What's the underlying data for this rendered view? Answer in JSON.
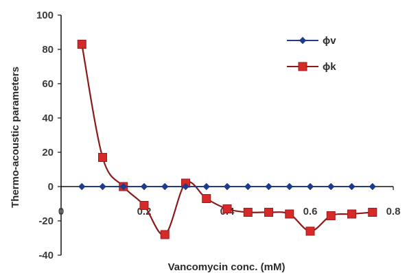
{
  "chart_data": {
    "type": "line",
    "xlabel": "Vancomycin conc. (mM)",
    "ylabel": "Thermo-acoustic parameters",
    "xlim": [
      0,
      0.8
    ],
    "ylim": [
      -40,
      100
    ],
    "x_ticks": [
      "0",
      "0.2",
      "0.4",
      "0.6",
      "0.8"
    ],
    "y_ticks": [
      "-40",
      "-20",
      "0",
      "20",
      "40",
      "60",
      "80",
      "100"
    ],
    "x_tick_values": [
      0,
      0.2,
      0.4,
      0.6,
      0.8
    ],
    "y_tick_values": [
      -40,
      -20,
      0,
      20,
      40,
      60,
      80,
      100
    ],
    "grid": false,
    "legend_position": "top-right",
    "series": [
      {
        "name": "ϕv",
        "color": "#1f3b8c",
        "marker": "diamond",
        "x": [
          0.05,
          0.1,
          0.15,
          0.2,
          0.25,
          0.3,
          0.35,
          0.4,
          0.45,
          0.5,
          0.55,
          0.6,
          0.65,
          0.7,
          0.75
        ],
        "y": [
          0,
          0,
          0,
          0,
          0,
          0,
          0,
          0,
          0,
          0,
          0,
          0,
          0,
          0,
          0
        ]
      },
      {
        "name": "ϕk",
        "color": "#d42a2a",
        "marker": "square",
        "x": [
          0.05,
          0.1,
          0.15,
          0.2,
          0.25,
          0.3,
          0.35,
          0.4,
          0.45,
          0.5,
          0.55,
          0.6,
          0.65,
          0.7,
          0.75
        ],
        "y": [
          83,
          17,
          0,
          -11,
          -28,
          2,
          -7,
          -13,
          -15,
          -15,
          -16,
          -26,
          -17,
          -16,
          -15
        ]
      }
    ]
  }
}
